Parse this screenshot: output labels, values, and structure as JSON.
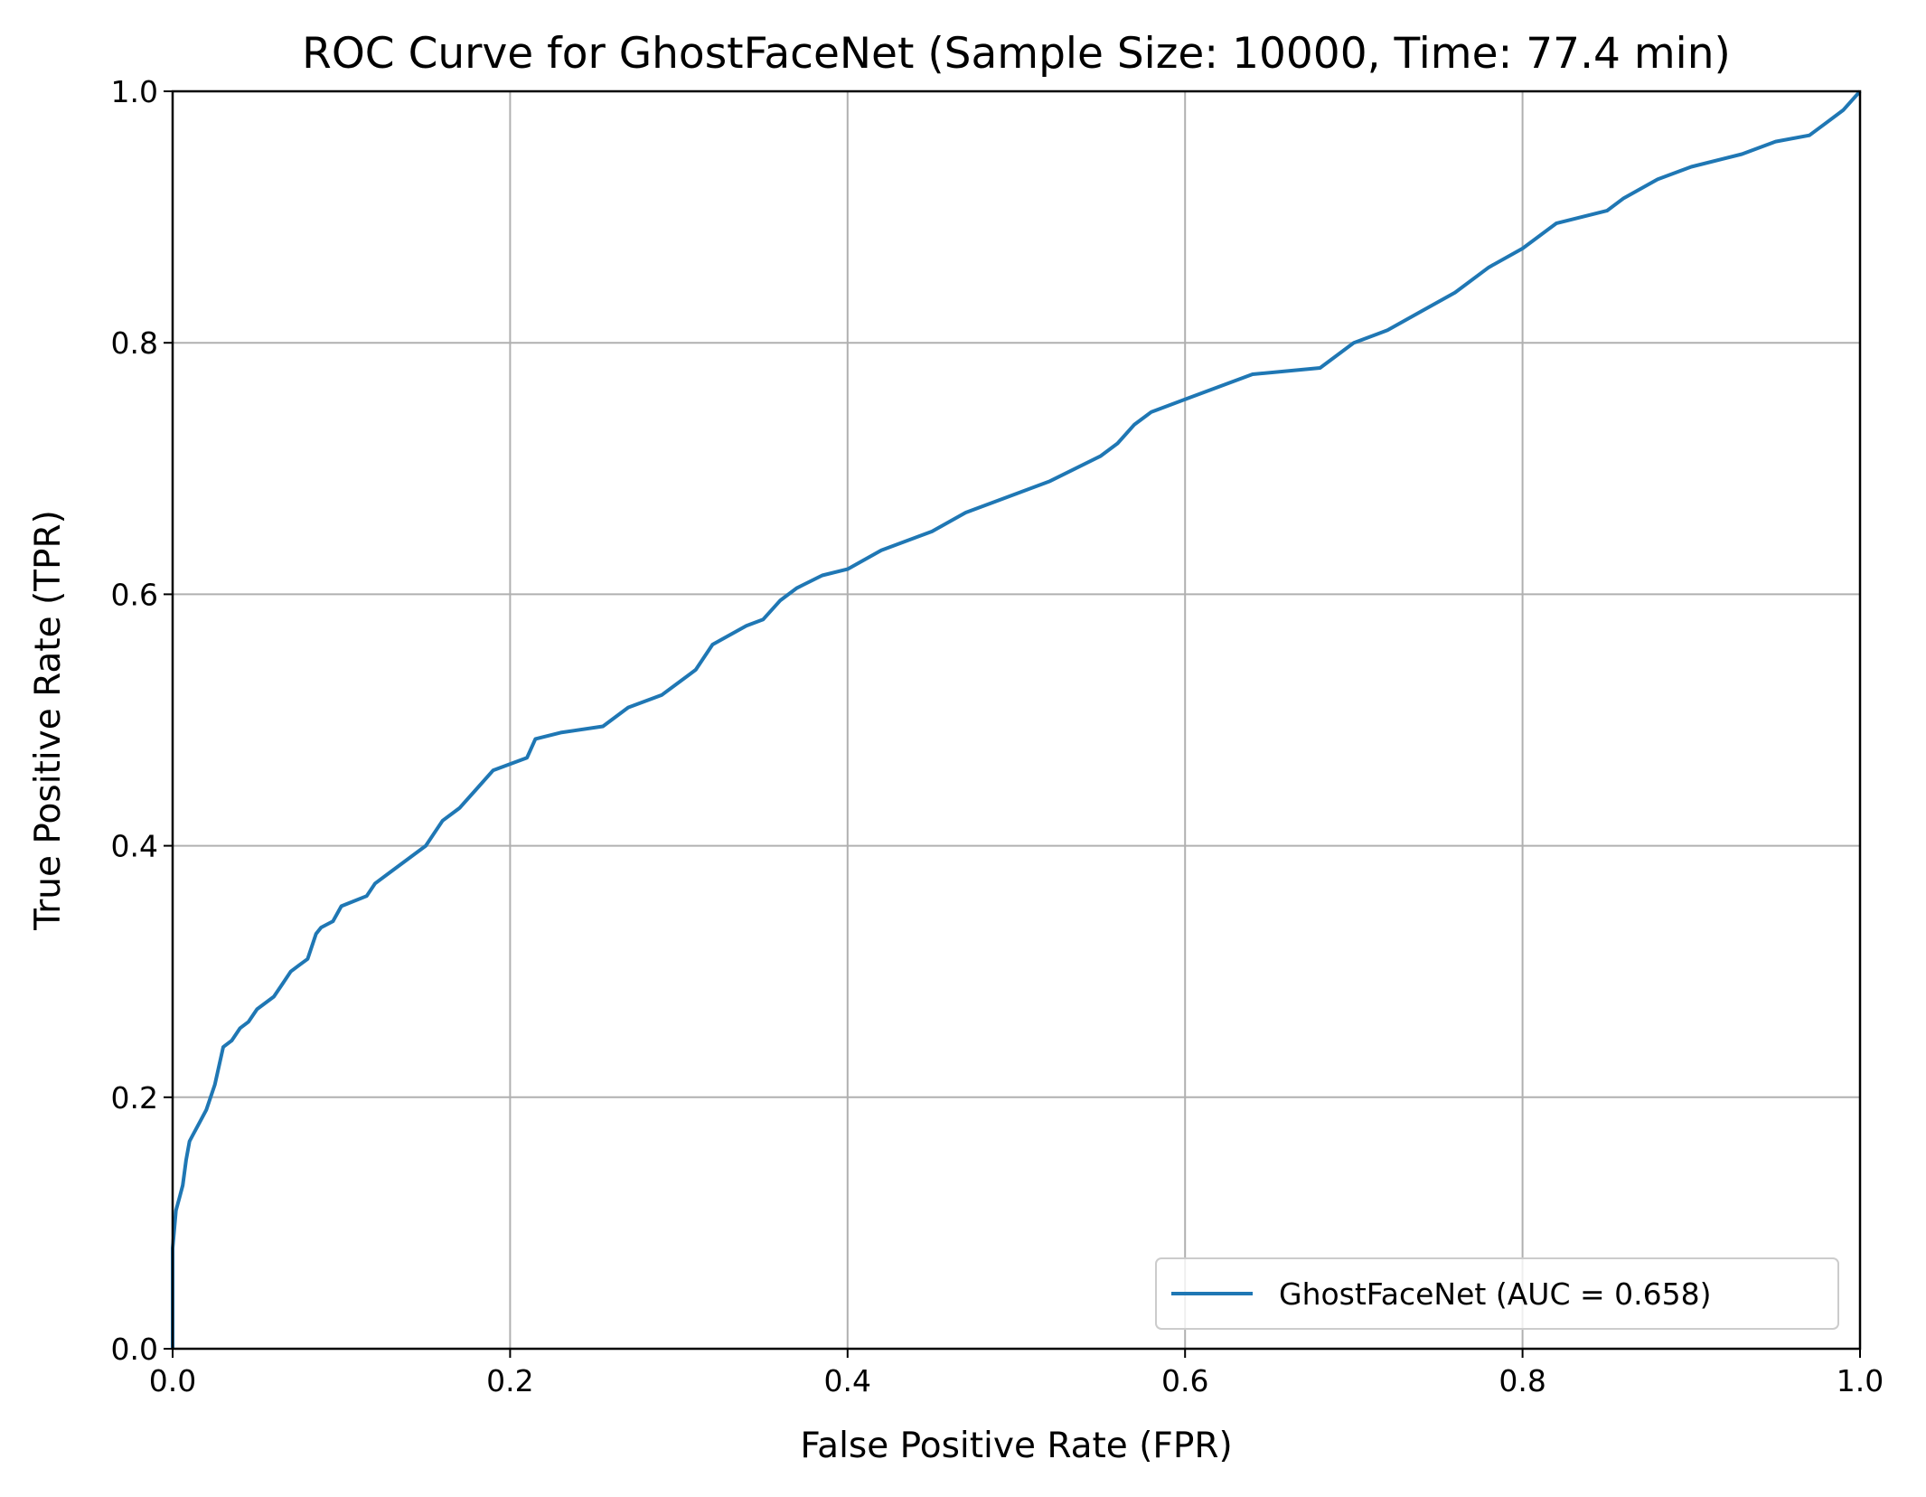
{
  "chart_data": {
    "type": "line",
    "title": "ROC Curve for GhostFaceNet (Sample Size: 10000, Time: 77.4 min)",
    "xlabel": "False Positive Rate (FPR)",
    "ylabel": "True Positive Rate (TPR)",
    "xlim": [
      0.0,
      1.0
    ],
    "ylim": [
      0.0,
      1.0
    ],
    "xticks": [
      "0.0",
      "0.2",
      "0.4",
      "0.6",
      "0.8",
      "1.0"
    ],
    "yticks": [
      "0.0",
      "0.2",
      "0.4",
      "0.6",
      "0.8",
      "1.0"
    ],
    "grid": true,
    "legend_position": "lower-right",
    "series": [
      {
        "name": "GhostFaceNet (AUC = 0.658)",
        "color": "#1f77b4",
        "x": [
          0.0,
          0.0,
          0.002,
          0.004,
          0.006,
          0.008,
          0.01,
          0.012,
          0.016,
          0.02,
          0.025,
          0.03,
          0.035,
          0.04,
          0.045,
          0.05,
          0.06,
          0.065,
          0.07,
          0.075,
          0.08,
          0.085,
          0.088,
          0.095,
          0.1,
          0.115,
          0.12,
          0.13,
          0.14,
          0.15,
          0.155,
          0.16,
          0.17,
          0.18,
          0.19,
          0.21,
          0.215,
          0.23,
          0.255,
          0.27,
          0.29,
          0.31,
          0.32,
          0.34,
          0.35,
          0.36,
          0.37,
          0.385,
          0.4,
          0.42,
          0.45,
          0.47,
          0.49,
          0.52,
          0.55,
          0.56,
          0.57,
          0.58,
          0.6,
          0.62,
          0.64,
          0.68,
          0.7,
          0.72,
          0.74,
          0.76,
          0.78,
          0.8,
          0.82,
          0.85,
          0.86,
          0.88,
          0.9,
          0.93,
          0.95,
          0.97,
          0.98,
          0.99,
          1.0
        ],
        "y": [
          0.0,
          0.08,
          0.11,
          0.12,
          0.13,
          0.15,
          0.165,
          0.17,
          0.18,
          0.19,
          0.21,
          0.24,
          0.245,
          0.255,
          0.26,
          0.27,
          0.28,
          0.29,
          0.3,
          0.305,
          0.31,
          0.33,
          0.335,
          0.34,
          0.352,
          0.36,
          0.37,
          0.38,
          0.39,
          0.4,
          0.41,
          0.42,
          0.43,
          0.445,
          0.46,
          0.47,
          0.485,
          0.49,
          0.495,
          0.51,
          0.52,
          0.54,
          0.56,
          0.575,
          0.58,
          0.595,
          0.605,
          0.615,
          0.62,
          0.635,
          0.65,
          0.665,
          0.675,
          0.69,
          0.71,
          0.72,
          0.735,
          0.745,
          0.755,
          0.765,
          0.775,
          0.78,
          0.8,
          0.81,
          0.825,
          0.84,
          0.86,
          0.875,
          0.895,
          0.905,
          0.915,
          0.93,
          0.94,
          0.95,
          0.96,
          0.965,
          0.975,
          0.985,
          1.0
        ]
      }
    ]
  }
}
